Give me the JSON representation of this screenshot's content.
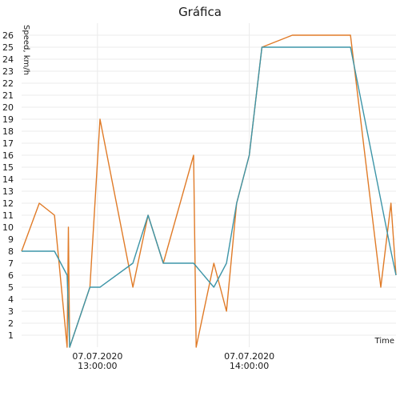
{
  "chart_data": {
    "type": "line",
    "title": "Gráfica",
    "xlabel": "Time",
    "ylabel": "Speed, km/h",
    "ylim": [
      0,
      27
    ],
    "xlim": [
      "12:30:00",
      "14:58:00"
    ],
    "grid": true,
    "y_ticks": [
      1,
      2,
      3,
      4,
      5,
      6,
      7,
      8,
      9,
      10,
      11,
      12,
      13,
      14,
      15,
      16,
      17,
      18,
      19,
      20,
      21,
      22,
      23,
      24,
      25,
      26
    ],
    "x_ticks": [
      {
        "x": "13:00:00",
        "date": "07.07.2020",
        "time": "13:00:00"
      },
      {
        "x": "14:00:00",
        "date": "07.07.2020",
        "time": "14:00:00"
      }
    ],
    "series": [
      {
        "color": "#e07b28",
        "points": [
          [
            "12:30:00",
            8
          ],
          [
            "12:37:00",
            12
          ],
          [
            "12:43:00",
            11
          ],
          [
            "12:48:00",
            0
          ],
          [
            "12:48:30",
            10
          ],
          [
            "12:49:00",
            0
          ],
          [
            "12:57:00",
            5
          ],
          [
            "13:01:00",
            19
          ],
          [
            "13:14:00",
            5
          ],
          [
            "13:20:00",
            11
          ],
          [
            "13:26:00",
            7
          ],
          [
            "13:38:00",
            16
          ],
          [
            "13:39:00",
            0
          ],
          [
            "13:46:00",
            7
          ],
          [
            "13:51:00",
            3
          ],
          [
            "13:55:00",
            12
          ],
          [
            "14:00:00",
            16
          ],
          [
            "14:05:00",
            25
          ],
          [
            "14:17:00",
            26
          ],
          [
            "14:40:00",
            26
          ],
          [
            "14:52:00",
            5
          ],
          [
            "14:56:00",
            12
          ],
          [
            "14:58:00",
            6
          ]
        ]
      },
      {
        "color": "#3d95a8",
        "points": [
          [
            "12:30:00",
            8
          ],
          [
            "12:43:00",
            8
          ],
          [
            "12:48:00",
            6
          ],
          [
            "12:49:00",
            0
          ],
          [
            "12:57:00",
            5
          ],
          [
            "13:01:00",
            5
          ],
          [
            "13:14:00",
            7
          ],
          [
            "13:20:00",
            11
          ],
          [
            "13:26:00",
            7
          ],
          [
            "13:38:00",
            7
          ],
          [
            "13:46:00",
            5
          ],
          [
            "13:51:00",
            7
          ],
          [
            "13:55:00",
            12
          ],
          [
            "14:00:00",
            16
          ],
          [
            "14:05:00",
            25
          ],
          [
            "14:40:00",
            25
          ],
          [
            "14:56:00",
            8
          ],
          [
            "14:58:00",
            6
          ]
        ]
      }
    ]
  }
}
